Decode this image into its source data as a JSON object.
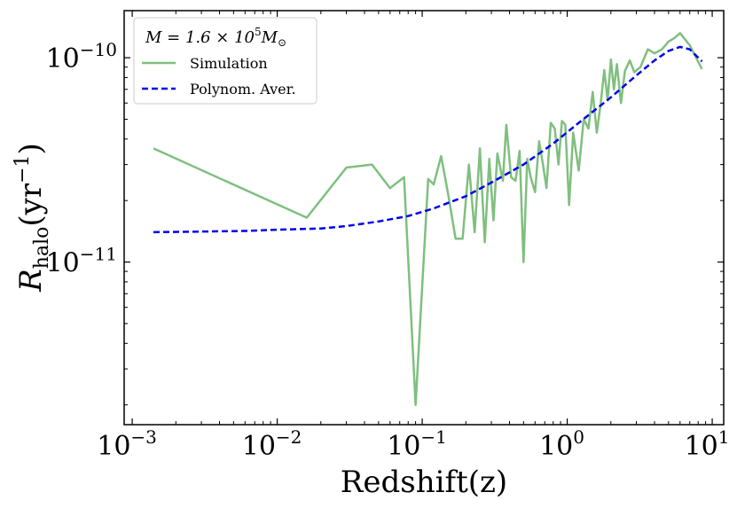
{
  "chart_data": {
    "type": "line",
    "title": "",
    "xlabel": "Redshift(z)",
    "ylabel": "R_halo(yr^-1)",
    "ylabel_parts": {
      "base": "R",
      "sub": "halo",
      "open": "(yr",
      "sup": "−1",
      "close": ")"
    },
    "xscale": "log",
    "yscale": "log",
    "xlim": [
      0.001,
      10
    ],
    "ylim": [
      1.6e-12,
      1.7e-10
    ],
    "x_ticks": [
      {
        "value": 0.001,
        "base": "10",
        "exp": "−3"
      },
      {
        "value": 0.01,
        "base": "10",
        "exp": "−2"
      },
      {
        "value": 0.1,
        "base": "10",
        "exp": "−1"
      },
      {
        "value": 1,
        "base": "10",
        "exp": "0"
      },
      {
        "value": 10,
        "base": "10",
        "exp": "1"
      }
    ],
    "y_ticks": [
      {
        "value": 1e-11,
        "base": "10",
        "exp": "−11"
      },
      {
        "value": 1e-10,
        "base": "10",
        "exp": "−10"
      }
    ],
    "legend": {
      "position": "top-left",
      "title": "M = 1.6 × 10⁵M⊙",
      "title_parts": {
        "lhs": "M = 1.6 × 10",
        "sup": "5",
        "M": "M",
        "sub": "⊙"
      },
      "entries": [
        "Simulation",
        "Polynom. Aver."
      ]
    },
    "series": [
      {
        "name": "Simulation",
        "color": "#7fbf7f",
        "style": "solid",
        "x": [
          0.0014,
          0.016,
          0.03,
          0.045,
          0.06,
          0.075,
          0.09,
          0.11,
          0.12,
          0.135,
          0.15,
          0.17,
          0.19,
          0.21,
          0.23,
          0.25,
          0.27,
          0.29,
          0.31,
          0.33,
          0.36,
          0.38,
          0.41,
          0.44,
          0.47,
          0.5,
          0.53,
          0.56,
          0.6,
          0.64,
          0.68,
          0.72,
          0.77,
          0.82,
          0.87,
          0.92,
          0.97,
          1.03,
          1.1,
          1.2,
          1.3,
          1.4,
          1.5,
          1.6,
          1.7,
          1.8,
          1.9,
          2.0,
          2.1,
          2.2,
          2.35,
          2.5,
          2.7,
          2.9,
          3.2,
          3.6,
          4.0,
          4.5,
          5.0,
          5.5,
          6.0,
          7.0,
          8.5
        ],
        "y": [
          3.6e-11,
          1.65e-11,
          2.9e-11,
          3e-11,
          2.3e-11,
          2.6e-11,
          2e-12,
          2.55e-11,
          2.4e-11,
          3.3e-11,
          2.2e-11,
          1.3e-11,
          1.3e-11,
          3e-11,
          1.4e-11,
          3.6e-11,
          1.25e-11,
          3.2e-11,
          1.6e-11,
          3.4e-11,
          2.5e-11,
          4.7e-11,
          2.6e-11,
          2.5e-11,
          3.5e-11,
          1e-11,
          3.2e-11,
          2.6e-11,
          2.2e-11,
          3.9e-11,
          3e-11,
          2.3e-11,
          4.8e-11,
          4.5e-11,
          3e-11,
          4.9e-11,
          4.7e-11,
          1.9e-11,
          4.3e-11,
          2.8e-11,
          5e-11,
          4.5e-11,
          6.8e-11,
          4.3e-11,
          5.9e-11,
          8.7e-11,
          6.2e-11,
          9.8e-11,
          7e-11,
          9.3e-11,
          6e-11,
          8.6e-11,
          9.7e-11,
          8.5e-11,
          9e-11,
          1.1e-10,
          1.05e-10,
          1.1e-10,
          1.2e-10,
          1.25e-10,
          1.32e-10,
          1.15e-10,
          8.8e-11
        ]
      },
      {
        "name": "Polynom. Aver.",
        "color": "#0000ee",
        "style": "dashed",
        "x": [
          0.0014,
          0.003,
          0.006,
          0.01,
          0.02,
          0.03,
          0.05,
          0.08,
          0.12,
          0.2,
          0.3,
          0.5,
          0.8,
          1.2,
          2.0,
          3.0,
          4.0,
          5.0,
          6.0,
          7.0,
          8.5
        ],
        "y": [
          1.4e-11,
          1.41e-11,
          1.42e-11,
          1.44e-11,
          1.46e-11,
          1.5e-11,
          1.58e-11,
          1.68e-11,
          1.83e-11,
          2.1e-11,
          2.45e-11,
          3e-11,
          3.8e-11,
          4.8e-11,
          6.4e-11,
          8.2e-11,
          9.7e-11,
          1.08e-10,
          1.13e-10,
          1.1e-10,
          9.6e-11
        ]
      }
    ]
  }
}
